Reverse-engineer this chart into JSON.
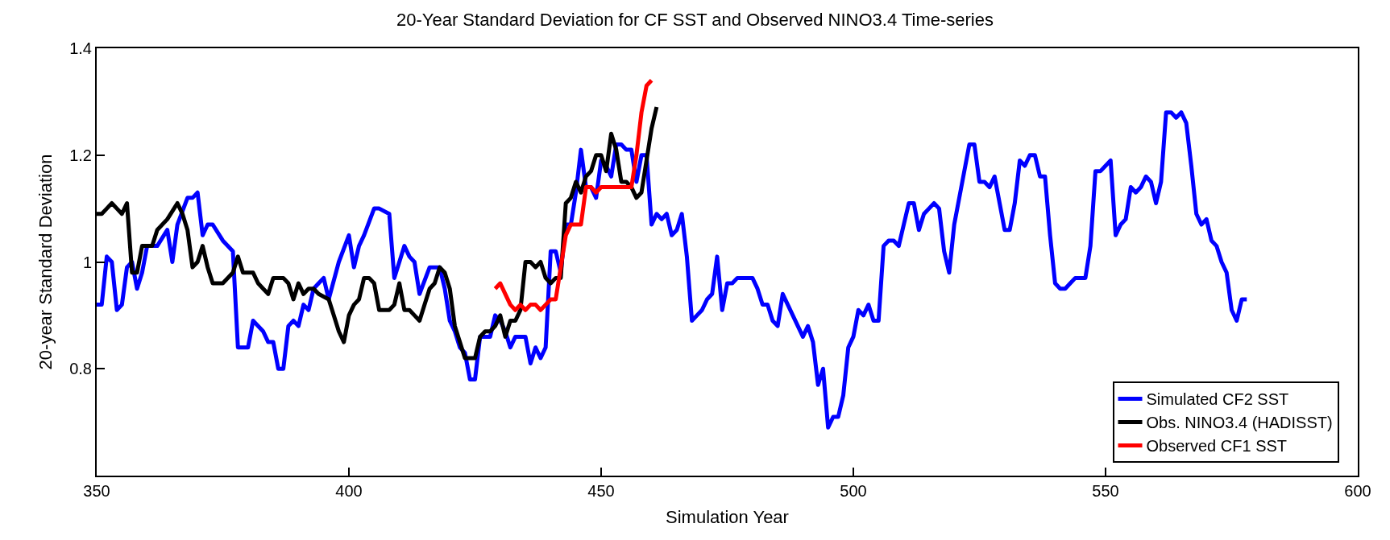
{
  "chart_data": {
    "type": "line",
    "title": "20-Year Standard Deviation for CF SST and Observed NINO3.4 Time-series",
    "xlabel": "Simulation Year",
    "ylabel": "20-year Standard Deviation",
    "xlim": [
      350,
      600
    ],
    "xticks": [
      350,
      400,
      450,
      500,
      550,
      600
    ],
    "ylim": [
      0.6,
      1.4
    ],
    "yticks": [
      {
        "value": 0.6,
        "label": null
      },
      0.8,
      1,
      1.2,
      1.4
    ],
    "grid": false,
    "legend": "bottom right",
    "line_style": "solid",
    "series": [
      {
        "name": "Simulated CF2 SST",
        "color": "#0000ff",
        "x": [
          350,
          351,
          352,
          353,
          354,
          355,
          356,
          357,
          358,
          359,
          360,
          362,
          364,
          365,
          366,
          368,
          369,
          370,
          371,
          372,
          373,
          375,
          377,
          378,
          379,
          380,
          381,
          383,
          384,
          385,
          386,
          387,
          388,
          389,
          390,
          391,
          392,
          393,
          394,
          395,
          396,
          398,
          400,
          401,
          402,
          403,
          405,
          406,
          408,
          409,
          411,
          412,
          413,
          414,
          416,
          418,
          419,
          420,
          421,
          422,
          423,
          424,
          425,
          426,
          427,
          428,
          429,
          430,
          431,
          432,
          433,
          434,
          435,
          436,
          437,
          438,
          439,
          440,
          441,
          442,
          443,
          444,
          445,
          446,
          447,
          448,
          449,
          450,
          451,
          452,
          453,
          454,
          455,
          456,
          457,
          458,
          459,
          460,
          461,
          462,
          463,
          464,
          465,
          466,
          467,
          468,
          469,
          470,
          471,
          472,
          473,
          474,
          475,
          476,
          477,
          480,
          481,
          482,
          483,
          484,
          485,
          486,
          488,
          490,
          491,
          492,
          493,
          494,
          495,
          496,
          497,
          498,
          499,
          500,
          501,
          502,
          503,
          504,
          505,
          506,
          507,
          508,
          509,
          510,
          511,
          512,
          513,
          514,
          515,
          516,
          517,
          518,
          519,
          520,
          522,
          523,
          524,
          525,
          526,
          527,
          528,
          529,
          530,
          531,
          532,
          533,
          534,
          535,
          536,
          537,
          538,
          539,
          540,
          541,
          542,
          543,
          544,
          545,
          546,
          547,
          548,
          549,
          550,
          551,
          552,
          553,
          554,
          555,
          556,
          557,
          558,
          559,
          560,
          561,
          562,
          563,
          564,
          565,
          566,
          567,
          568,
          569,
          570,
          571,
          572,
          573,
          574,
          575,
          576,
          577,
          578
        ],
        "values": [
          0.92,
          0.92,
          1.01,
          1.0,
          0.91,
          0.92,
          0.99,
          1.0,
          0.95,
          0.98,
          1.03,
          1.03,
          1.06,
          1.0,
          1.07,
          1.12,
          1.12,
          1.13,
          1.05,
          1.07,
          1.07,
          1.04,
          1.02,
          0.84,
          0.84,
          0.84,
          0.89,
          0.87,
          0.85,
          0.85,
          0.8,
          0.8,
          0.88,
          0.89,
          0.88,
          0.92,
          0.91,
          0.95,
          0.96,
          0.97,
          0.93,
          1.0,
          1.05,
          0.99,
          1.03,
          1.05,
          1.1,
          1.1,
          1.09,
          0.97,
          1.03,
          1.01,
          1.0,
          0.94,
          0.99,
          0.99,
          0.95,
          0.89,
          0.87,
          0.84,
          0.83,
          0.78,
          0.78,
          0.86,
          0.86,
          0.86,
          0.9,
          0.89,
          0.87,
          0.84,
          0.86,
          0.86,
          0.86,
          0.81,
          0.84,
          0.82,
          0.84,
          1.02,
          1.02,
          0.98,
          1.07,
          1.07,
          1.13,
          1.21,
          1.14,
          1.14,
          1.12,
          1.19,
          1.18,
          1.16,
          1.22,
          1.22,
          1.21,
          1.21,
          1.15,
          1.2,
          1.2,
          1.07,
          1.09,
          1.08,
          1.09,
          1.05,
          1.06,
          1.09,
          1.01,
          0.89,
          0.9,
          0.91,
          0.93,
          0.94,
          1.01,
          0.91,
          0.96,
          0.96,
          0.97,
          0.97,
          0.95,
          0.92,
          0.92,
          0.89,
          0.88,
          0.94,
          0.9,
          0.86,
          0.88,
          0.85,
          0.77,
          0.8,
          0.69,
          0.71,
          0.71,
          0.75,
          0.84,
          0.86,
          0.91,
          0.9,
          0.92,
          0.89,
          0.89,
          1.03,
          1.04,
          1.04,
          1.03,
          1.07,
          1.11,
          1.11,
          1.06,
          1.09,
          1.1,
          1.11,
          1.1,
          1.02,
          0.98,
          1.07,
          1.17,
          1.22,
          1.22,
          1.15,
          1.15,
          1.14,
          1.16,
          1.11,
          1.06,
          1.06,
          1.11,
          1.19,
          1.18,
          1.2,
          1.2,
          1.16,
          1.16,
          1.05,
          0.96,
          0.95,
          0.95,
          0.96,
          0.97,
          0.97,
          0.97,
          1.03,
          1.17,
          1.17,
          1.18,
          1.19,
          1.05,
          1.07,
          1.08,
          1.14,
          1.13,
          1.14,
          1.16,
          1.15,
          1.11,
          1.15,
          1.28,
          1.28,
          1.27,
          1.28,
          1.26,
          1.18,
          1.09,
          1.07,
          1.08,
          1.04,
          1.03,
          1.0,
          0.98,
          0.91,
          0.89,
          0.93,
          0.93
        ]
      },
      {
        "name": "Obs. NINO3.4 (HADISST)",
        "color": "#000000",
        "x": [
          350,
          351,
          352,
          353,
          354,
          355,
          356,
          357,
          358,
          359,
          361,
          362,
          364,
          366,
          367,
          368,
          369,
          370,
          371,
          372,
          373,
          375,
          377,
          378,
          379,
          381,
          382,
          383,
          384,
          385,
          386,
          387,
          388,
          389,
          390,
          391,
          392,
          393,
          394,
          396,
          397,
          398,
          399,
          400,
          401,
          402,
          403,
          404,
          405,
          406,
          407,
          408,
          409,
          410,
          411,
          412,
          413,
          414,
          415,
          416,
          417,
          418,
          419,
          420,
          421,
          422,
          423,
          424,
          425,
          426,
          427,
          428,
          429,
          430,
          431,
          432,
          433,
          434,
          435,
          436,
          437,
          438,
          439,
          440,
          441,
          442,
          443,
          444,
          445,
          446,
          447,
          448,
          449,
          450,
          451,
          452,
          453,
          454,
          455,
          456,
          457,
          458,
          459,
          460,
          461
        ],
        "values": [
          1.09,
          1.09,
          1.1,
          1.11,
          1.1,
          1.09,
          1.11,
          0.98,
          0.98,
          1.03,
          1.03,
          1.06,
          1.08,
          1.11,
          1.09,
          1.06,
          0.99,
          1.0,
          1.03,
          0.99,
          0.96,
          0.96,
          0.98,
          1.01,
          0.98,
          0.98,
          0.96,
          0.95,
          0.94,
          0.97,
          0.97,
          0.97,
          0.96,
          0.93,
          0.96,
          0.94,
          0.95,
          0.95,
          0.94,
          0.93,
          0.9,
          0.87,
          0.85,
          0.9,
          0.92,
          0.93,
          0.97,
          0.97,
          0.96,
          0.91,
          0.91,
          0.91,
          0.92,
          0.96,
          0.91,
          0.91,
          0.9,
          0.89,
          0.92,
          0.95,
          0.96,
          0.99,
          0.98,
          0.95,
          0.88,
          0.85,
          0.82,
          0.82,
          0.82,
          0.86,
          0.87,
          0.87,
          0.88,
          0.9,
          0.86,
          0.89,
          0.89,
          0.91,
          1.0,
          1.0,
          0.99,
          1.0,
          0.97,
          0.96,
          0.97,
          0.97,
          1.11,
          1.12,
          1.15,
          1.13,
          1.16,
          1.17,
          1.2,
          1.2,
          1.17,
          1.24,
          1.21,
          1.15,
          1.15,
          1.14,
          1.12,
          1.13,
          1.19,
          1.25,
          1.29
        ]
      },
      {
        "name": "Observed CF1 SST",
        "color": "#ff0000",
        "x": [
          429,
          430,
          431,
          432,
          433,
          434,
          435,
          436,
          437,
          438,
          439,
          440,
          441,
          442,
          443,
          444,
          445,
          446,
          447,
          448,
          449,
          450,
          451,
          452,
          453,
          454,
          455,
          456,
          457,
          458,
          459,
          460
        ],
        "values": [
          0.95,
          0.96,
          0.94,
          0.92,
          0.91,
          0.92,
          0.91,
          0.92,
          0.92,
          0.91,
          0.92,
          0.93,
          0.93,
          0.99,
          1.05,
          1.07,
          1.07,
          1.07,
          1.14,
          1.14,
          1.13,
          1.14,
          1.14,
          1.14,
          1.14,
          1.14,
          1.14,
          1.14,
          1.2,
          1.28,
          1.33,
          1.34
        ]
      }
    ]
  }
}
